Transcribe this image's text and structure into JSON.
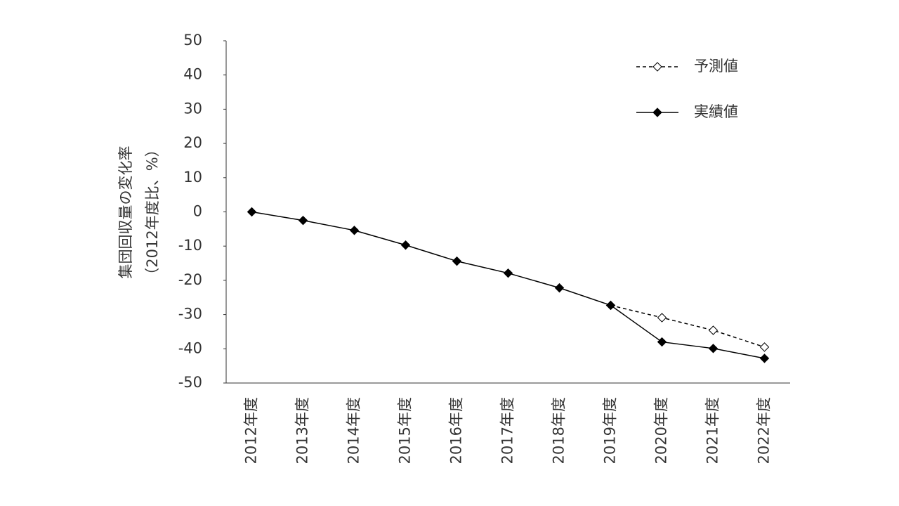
{
  "chart_data": {
    "type": "line",
    "y_label": [
      "集団回収量の変化率",
      "（2012年度比、%）"
    ],
    "categories": [
      "2012年度",
      "2013年度",
      "2014年度",
      "2015年度",
      "2016年度",
      "2017年度",
      "2018年度",
      "2019年度",
      "2020年度",
      "2021年度",
      "2022年度"
    ],
    "series": [
      {
        "name": "予測値",
        "color": "#000000",
        "dashed": true,
        "marker": "hollow-diamond",
        "values": [
          null,
          null,
          null,
          null,
          null,
          null,
          null,
          -27.3,
          -30.9,
          -34.6,
          -39.5
        ]
      },
      {
        "name": "実績値",
        "color": "#000000",
        "dashed": false,
        "marker": "diamond",
        "values": [
          0,
          -2.5,
          -5.4,
          -9.7,
          -14.4,
          -17.9,
          -22.2,
          -27.3,
          -38.0,
          -39.9,
          -42.8
        ]
      }
    ],
    "ylim": [
      -50,
      50
    ],
    "yticks": [
      -50,
      -40,
      -30,
      -20,
      -10,
      0,
      10,
      20,
      30,
      40,
      50
    ],
    "grid": false,
    "legend": "top-right"
  }
}
